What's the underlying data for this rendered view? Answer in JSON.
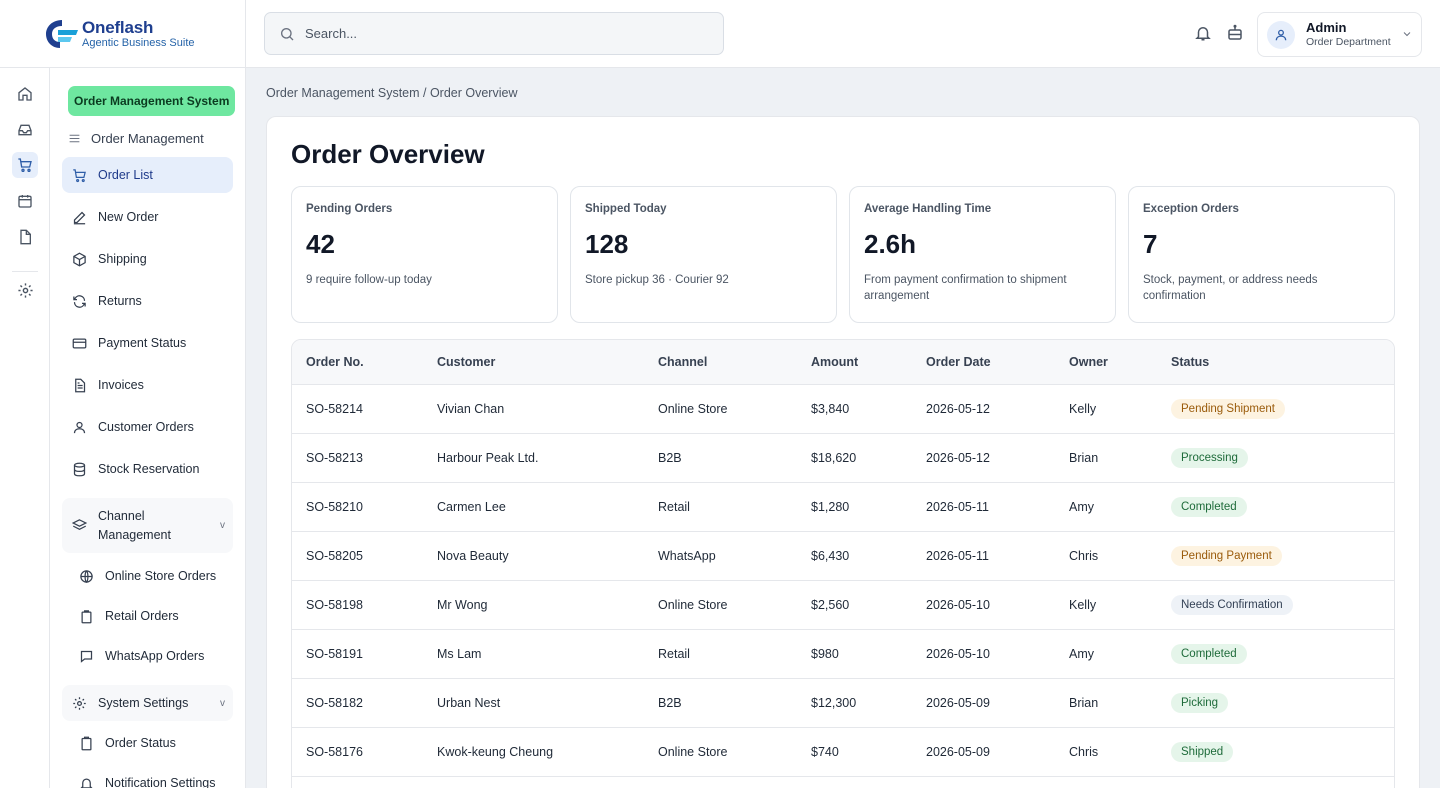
{
  "brand": {
    "name": "Oneflash",
    "tagline": "Agentic Business Suite"
  },
  "rail": [
    "home-icon",
    "inbox-icon",
    "cart-icon",
    "calendar-icon",
    "document-icon",
    "settings-icon"
  ],
  "sidebar": {
    "module_badge": "Order Management System",
    "section_title": "Order Management",
    "items": [
      {
        "label": "Order List",
        "icon": "cart-icon"
      },
      {
        "label": "New Order",
        "icon": "pencil-icon"
      },
      {
        "label": "Shipping",
        "icon": "box-icon"
      },
      {
        "label": "Returns",
        "icon": "refresh-icon"
      },
      {
        "label": "Payment Status",
        "icon": "credit-card-icon"
      },
      {
        "label": "Invoices",
        "icon": "invoice-icon"
      },
      {
        "label": "Customer Orders",
        "icon": "user-icon"
      },
      {
        "label": "Stock Reservation",
        "icon": "database-icon"
      }
    ],
    "channel_group": {
      "label": "Channel Management",
      "chevron": "v",
      "items": [
        {
          "label": "Online Store Orders",
          "icon": "globe-icon"
        },
        {
          "label": "Retail Orders",
          "icon": "store-icon"
        },
        {
          "label": "WhatsApp Orders",
          "icon": "chat-icon"
        }
      ]
    },
    "settings_group": {
      "label": "System Settings",
      "chevron": "v",
      "items": [
        {
          "label": "Order Status",
          "icon": "clipboard-icon"
        },
        {
          "label": "Notification Settings",
          "icon": "bell-icon"
        }
      ]
    }
  },
  "topbar": {
    "search_placeholder": "Search...",
    "user": {
      "name": "Admin",
      "role": "Order Department"
    }
  },
  "breadcrumb": "Order Management System / Order Overview",
  "page_title": "Order Overview",
  "kpis": [
    {
      "label": "Pending Orders",
      "value": "42",
      "note": "9 require follow-up today"
    },
    {
      "label": "Shipped Today",
      "value": "128",
      "note": "Store pickup 36 · Courier 92"
    },
    {
      "label": "Average Handling Time",
      "value": "2.6h",
      "note": "From payment confirmation to shipment arrangement"
    },
    {
      "label": "Exception Orders",
      "value": "7",
      "note": "Stock, payment, or address needs confirmation"
    }
  ],
  "table": {
    "columns": [
      "Order No.",
      "Customer",
      "Channel",
      "Amount",
      "Order Date",
      "Owner",
      "Status"
    ],
    "rows": [
      {
        "order_no": "SO-58214",
        "customer": "Vivian Chan",
        "channel": "Online Store",
        "amount": "$3,840",
        "date": "2026-05-12",
        "owner": "Kelly",
        "status": "Pending Shipment",
        "status_tone": "warn"
      },
      {
        "order_no": "SO-58213",
        "customer": "Harbour Peak Ltd.",
        "channel": "B2B",
        "amount": "$18,620",
        "date": "2026-05-12",
        "owner": "Brian",
        "status": "Processing",
        "status_tone": "ok"
      },
      {
        "order_no": "SO-58210",
        "customer": "Carmen Lee",
        "channel": "Retail",
        "amount": "$1,280",
        "date": "2026-05-11",
        "owner": "Amy",
        "status": "Completed",
        "status_tone": "ok"
      },
      {
        "order_no": "SO-58205",
        "customer": "Nova Beauty",
        "channel": "WhatsApp",
        "amount": "$6,430",
        "date": "2026-05-11",
        "owner": "Chris",
        "status": "Pending Payment",
        "status_tone": "warn"
      },
      {
        "order_no": "SO-58198",
        "customer": "Mr Wong",
        "channel": "Online Store",
        "amount": "$2,560",
        "date": "2026-05-10",
        "owner": "Kelly",
        "status": "Needs Confirmation",
        "status_tone": "info"
      },
      {
        "order_no": "SO-58191",
        "customer": "Ms Lam",
        "channel": "Retail",
        "amount": "$980",
        "date": "2026-05-10",
        "owner": "Amy",
        "status": "Completed",
        "status_tone": "ok"
      },
      {
        "order_no": "SO-58182",
        "customer": "Urban Nest",
        "channel": "B2B",
        "amount": "$12,300",
        "date": "2026-05-09",
        "owner": "Brian",
        "status": "Picking",
        "status_tone": "ok"
      },
      {
        "order_no": "SO-58176",
        "customer": "Kwok-keung Cheung",
        "channel": "Online Store",
        "amount": "$740",
        "date": "2026-05-09",
        "owner": "Chris",
        "status": "Shipped",
        "status_tone": "ok"
      }
    ]
  },
  "colors": {
    "accent": "#2f5ea8",
    "badge_green": "#6ee7a0",
    "status_warn_bg": "#fdf3e1",
    "status_warn_fg": "#9a5b0b",
    "status_ok_bg": "#e5f5ea",
    "status_ok_fg": "#1e6b3a",
    "status_info_bg": "#eef2f7",
    "status_info_fg": "#334155"
  }
}
